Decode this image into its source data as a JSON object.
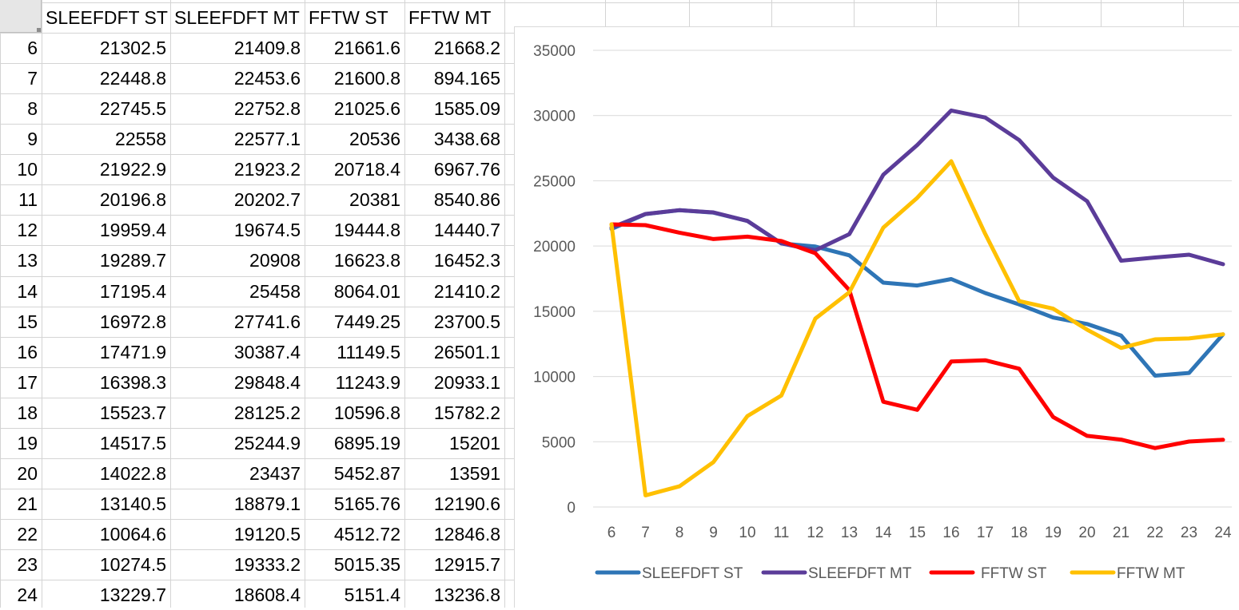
{
  "spreadsheet": {
    "headers": [
      "SLEEFDFT ST",
      "SLEEFDFT MT",
      "FFTW ST",
      "FFTW MT"
    ],
    "rows": [
      {
        "label": "6",
        "values": [
          "21302.5",
          "21409.8",
          "21661.6",
          "21668.2"
        ]
      },
      {
        "label": "7",
        "values": [
          "22448.8",
          "22453.6",
          "21600.8",
          "894.165"
        ]
      },
      {
        "label": "8",
        "values": [
          "22745.5",
          "22752.8",
          "21025.6",
          "1585.09"
        ]
      },
      {
        "label": "9",
        "values": [
          "22558",
          "22577.1",
          "20536",
          "3438.68"
        ]
      },
      {
        "label": "10",
        "values": [
          "21922.9",
          "21923.2",
          "20718.4",
          "6967.76"
        ]
      },
      {
        "label": "11",
        "values": [
          "20196.8",
          "20202.7",
          "20381",
          "8540.86"
        ]
      },
      {
        "label": "12",
        "values": [
          "19959.4",
          "19674.5",
          "19444.8",
          "14440.7"
        ]
      },
      {
        "label": "13",
        "values": [
          "19289.7",
          "20908",
          "16623.8",
          "16452.3"
        ]
      },
      {
        "label": "14",
        "values": [
          "17195.4",
          "25458",
          "8064.01",
          "21410.2"
        ]
      },
      {
        "label": "15",
        "values": [
          "16972.8",
          "27741.6",
          "7449.25",
          "23700.5"
        ]
      },
      {
        "label": "16",
        "values": [
          "17471.9",
          "30387.4",
          "11149.5",
          "26501.1"
        ]
      },
      {
        "label": "17",
        "values": [
          "16398.3",
          "29848.4",
          "11243.9",
          "20933.1"
        ]
      },
      {
        "label": "18",
        "values": [
          "15523.7",
          "28125.2",
          "10596.8",
          "15782.2"
        ]
      },
      {
        "label": "19",
        "values": [
          "14517.5",
          "25244.9",
          "6895.19",
          "15201"
        ]
      },
      {
        "label": "20",
        "values": [
          "14022.8",
          "23437",
          "5452.87",
          "13591"
        ]
      },
      {
        "label": "21",
        "values": [
          "13140.5",
          "18879.1",
          "5165.76",
          "12190.6"
        ]
      },
      {
        "label": "22",
        "values": [
          "10064.6",
          "19120.5",
          "4512.72",
          "12846.8"
        ]
      },
      {
        "label": "23",
        "values": [
          "10274.5",
          "19333.2",
          "5015.35",
          "12915.7"
        ]
      },
      {
        "label": "24",
        "values": [
          "13229.7",
          "18608.4",
          "5151.4",
          "13236.8"
        ]
      }
    ]
  },
  "chart_data": {
    "type": "line",
    "x": [
      6,
      7,
      8,
      9,
      10,
      11,
      12,
      13,
      14,
      15,
      16,
      17,
      18,
      19,
      20,
      21,
      22,
      23,
      24
    ],
    "ylim": [
      0,
      35000
    ],
    "yticks": [
      0,
      5000,
      10000,
      15000,
      20000,
      25000,
      30000,
      35000
    ],
    "grid": true,
    "legend_position": "bottom",
    "series": [
      {
        "name": "SLEEFDFT ST",
        "color": "#2E75B6",
        "values": [
          21302.5,
          22448.8,
          22745.5,
          22558,
          21922.9,
          20196.8,
          19959.4,
          19289.7,
          17195.4,
          16972.8,
          17471.9,
          16398.3,
          15523.7,
          14517.5,
          14022.8,
          13140.5,
          10064.6,
          10274.5,
          13229.7
        ]
      },
      {
        "name": "SLEEFDFT MT",
        "color": "#5B3C99",
        "values": [
          21409.8,
          22453.6,
          22752.8,
          22577.1,
          21923.2,
          20202.7,
          19674.5,
          20908,
          25458,
          27741.6,
          30387.4,
          29848.4,
          28125.2,
          25244.9,
          23437,
          18879.1,
          19120.5,
          19333.2,
          18608.4
        ]
      },
      {
        "name": "FFTW ST",
        "color": "#FF0000",
        "values": [
          21661.6,
          21600.8,
          21025.6,
          20536,
          20718.4,
          20381,
          19444.8,
          16623.8,
          8064.01,
          7449.25,
          11149.5,
          11243.9,
          10596.8,
          6895.19,
          5452.87,
          5165.76,
          4512.72,
          5015.35,
          5151.4
        ]
      },
      {
        "name": "FFTW MT",
        "color": "#FFC000",
        "values": [
          21668.2,
          894.165,
          1585.09,
          3438.68,
          6967.76,
          8540.86,
          14440.7,
          16452.3,
          21410.2,
          23700.5,
          26501.1,
          20933.1,
          15782.2,
          15201,
          13591,
          12190.6,
          12846.8,
          12915.7,
          13236.8
        ]
      }
    ]
  }
}
